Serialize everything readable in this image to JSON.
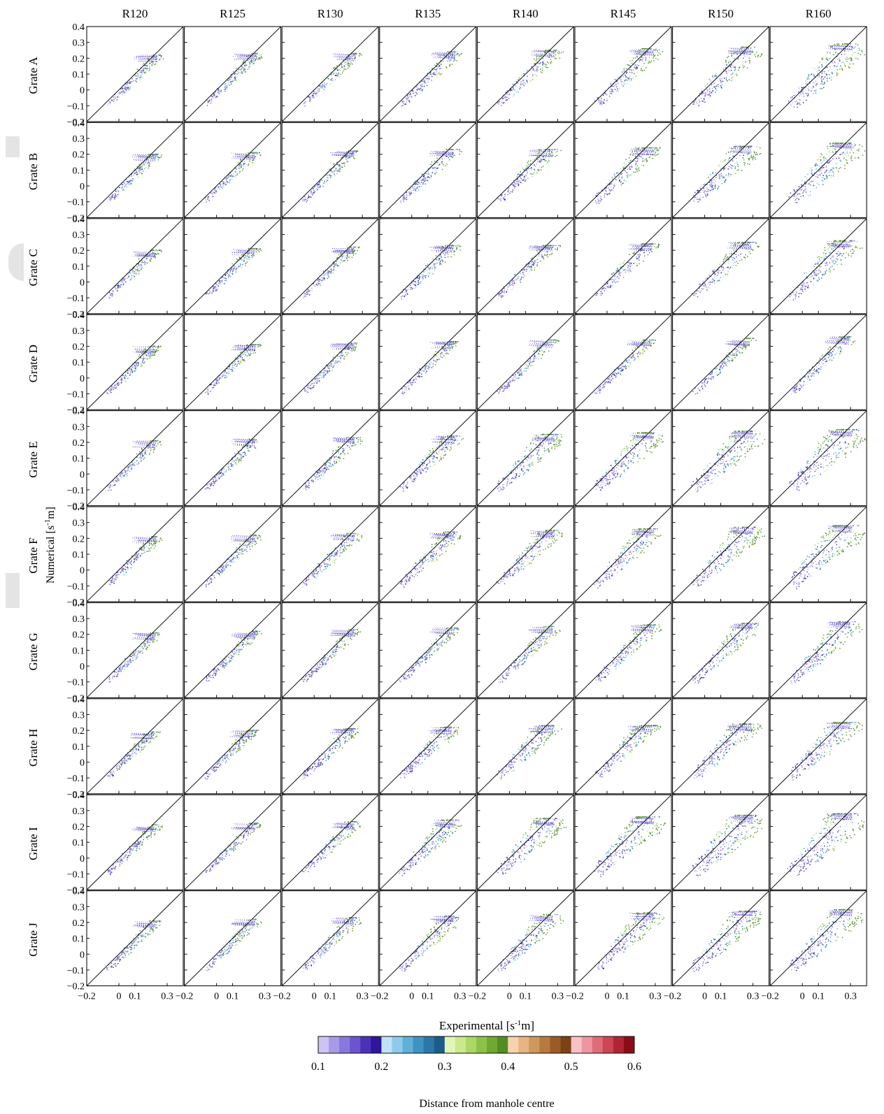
{
  "chart_data": {
    "type": "scatter",
    "layout": "small-multiples",
    "columns": [
      "R120",
      "R125",
      "R130",
      "R135",
      "R140",
      "R145",
      "R150",
      "R160"
    ],
    "rows": [
      "Grate A",
      "Grate B",
      "Grate C",
      "Grate D",
      "Grate E",
      "Grate F",
      "Grate G",
      "Grate H",
      "Grate I",
      "Grate J"
    ],
    "xlabel_main": "Experimental [s",
    "xlabel_sup": "-1",
    "xlabel_tail": "m]",
    "ylabel_main": "Numerical [s",
    "ylabel_sup": "-1",
    "ylabel_tail": "m]",
    "xlim": [
      -0.2,
      0.4
    ],
    "ylim": [
      -0.2,
      0.4
    ],
    "x_ticks": [
      -0.2,
      0,
      0.1,
      0.3
    ],
    "x_tick_labels": [
      "−0.2",
      "0",
      "0.1",
      "0.3"
    ],
    "y_ticks": [
      0.4,
      0.3,
      0.2,
      0.1,
      0,
      -0.1,
      -0.2
    ],
    "y_tick_labels": [
      "0.4",
      "0.3",
      "0.2",
      "0.1",
      "0",
      "−0.1",
      "−0.2"
    ],
    "reference_line": "y = x",
    "colorbar": {
      "label": "Distance from manhole centre",
      "range": [
        0.1,
        0.6
      ],
      "tick_values": [
        0.1,
        0.2,
        0.3,
        0.4,
        0.5,
        0.6
      ],
      "tick_labels": [
        "0.1",
        "0.2",
        "0.3",
        "0.4",
        "0.5",
        "0.6"
      ],
      "colors": [
        "#cfc3f3",
        "#a99ae9",
        "#8877dd",
        "#6a55cf",
        "#4a32b8",
        "#2f159c",
        "#bfe3f4",
        "#8dcbe9",
        "#5fb1d9",
        "#3f92c4",
        "#2c77a9",
        "#1c5c8c",
        "#e4f4b9",
        "#c8e98c",
        "#abd765",
        "#8dc248",
        "#6fa833",
        "#528d23",
        "#f7d3ad",
        "#e6b582",
        "#cf985c",
        "#b67a3e",
        "#995c27",
        "#7c4215",
        "#f7c1c6",
        "#ee969f",
        "#e06c79",
        "#cd4654",
        "#b02433",
        "#8a0c17"
      ]
    },
    "series_note": "Each panel plots numerical vs experimental values along the 1:1 line; point colour encodes distance from manhole centre.",
    "panel_extent": {
      "x_max": [
        [
          0.26,
          0.27,
          0.28,
          0.29,
          0.3,
          0.31,
          0.31,
          0.33
        ],
        [
          0.25,
          0.26,
          0.27,
          0.28,
          0.29,
          0.31,
          0.31,
          0.33
        ],
        [
          0.25,
          0.26,
          0.27,
          0.28,
          0.29,
          0.3,
          0.31,
          0.32
        ],
        [
          0.25,
          0.26,
          0.27,
          0.28,
          0.29,
          0.29,
          0.3,
          0.31
        ],
        [
          0.25,
          0.26,
          0.27,
          0.29,
          0.3,
          0.31,
          0.32,
          0.33
        ],
        [
          0.25,
          0.26,
          0.27,
          0.28,
          0.3,
          0.31,
          0.32,
          0.33
        ],
        [
          0.25,
          0.26,
          0.27,
          0.28,
          0.29,
          0.31,
          0.32,
          0.32
        ],
        [
          0.24,
          0.25,
          0.26,
          0.27,
          0.29,
          0.3,
          0.31,
          0.32
        ],
        [
          0.25,
          0.26,
          0.27,
          0.29,
          0.3,
          0.31,
          0.32,
          0.33
        ],
        [
          0.25,
          0.26,
          0.27,
          0.28,
          0.29,
          0.31,
          0.32,
          0.33
        ]
      ],
      "y_max": [
        [
          0.22,
          0.23,
          0.23,
          0.24,
          0.25,
          0.26,
          0.27,
          0.29
        ],
        [
          0.2,
          0.21,
          0.22,
          0.23,
          0.23,
          0.24,
          0.25,
          0.27
        ],
        [
          0.2,
          0.21,
          0.22,
          0.23,
          0.23,
          0.24,
          0.25,
          0.26
        ],
        [
          0.2,
          0.21,
          0.22,
          0.23,
          0.24,
          0.24,
          0.25,
          0.26
        ],
        [
          0.21,
          0.22,
          0.23,
          0.24,
          0.25,
          0.26,
          0.27,
          0.28
        ],
        [
          0.21,
          0.22,
          0.23,
          0.24,
          0.25,
          0.26,
          0.27,
          0.28
        ],
        [
          0.21,
          0.22,
          0.23,
          0.24,
          0.25,
          0.26,
          0.27,
          0.28
        ],
        [
          0.19,
          0.2,
          0.21,
          0.22,
          0.23,
          0.23,
          0.24,
          0.25
        ],
        [
          0.21,
          0.22,
          0.23,
          0.24,
          0.25,
          0.26,
          0.27,
          0.28
        ],
        [
          0.21,
          0.22,
          0.23,
          0.24,
          0.25,
          0.26,
          0.27,
          0.28
        ]
      ],
      "spread": [
        [
          0.03,
          0.03,
          0.03,
          0.04,
          0.05,
          0.06,
          0.07,
          0.09
        ],
        [
          0.03,
          0.03,
          0.03,
          0.04,
          0.05,
          0.06,
          0.08,
          0.1
        ],
        [
          0.03,
          0.03,
          0.03,
          0.04,
          0.04,
          0.05,
          0.06,
          0.08
        ],
        [
          0.03,
          0.03,
          0.03,
          0.03,
          0.03,
          0.03,
          0.03,
          0.04
        ],
        [
          0.03,
          0.03,
          0.04,
          0.05,
          0.07,
          0.08,
          0.09,
          0.1
        ],
        [
          0.03,
          0.03,
          0.04,
          0.05,
          0.06,
          0.07,
          0.08,
          0.1
        ],
        [
          0.03,
          0.03,
          0.03,
          0.03,
          0.04,
          0.05,
          0.06,
          0.07
        ],
        [
          0.03,
          0.03,
          0.04,
          0.05,
          0.06,
          0.06,
          0.07,
          0.08
        ],
        [
          0.03,
          0.03,
          0.04,
          0.06,
          0.08,
          0.09,
          0.1,
          0.11
        ],
        [
          0.03,
          0.03,
          0.04,
          0.05,
          0.06,
          0.07,
          0.08,
          0.09
        ]
      ]
    }
  }
}
